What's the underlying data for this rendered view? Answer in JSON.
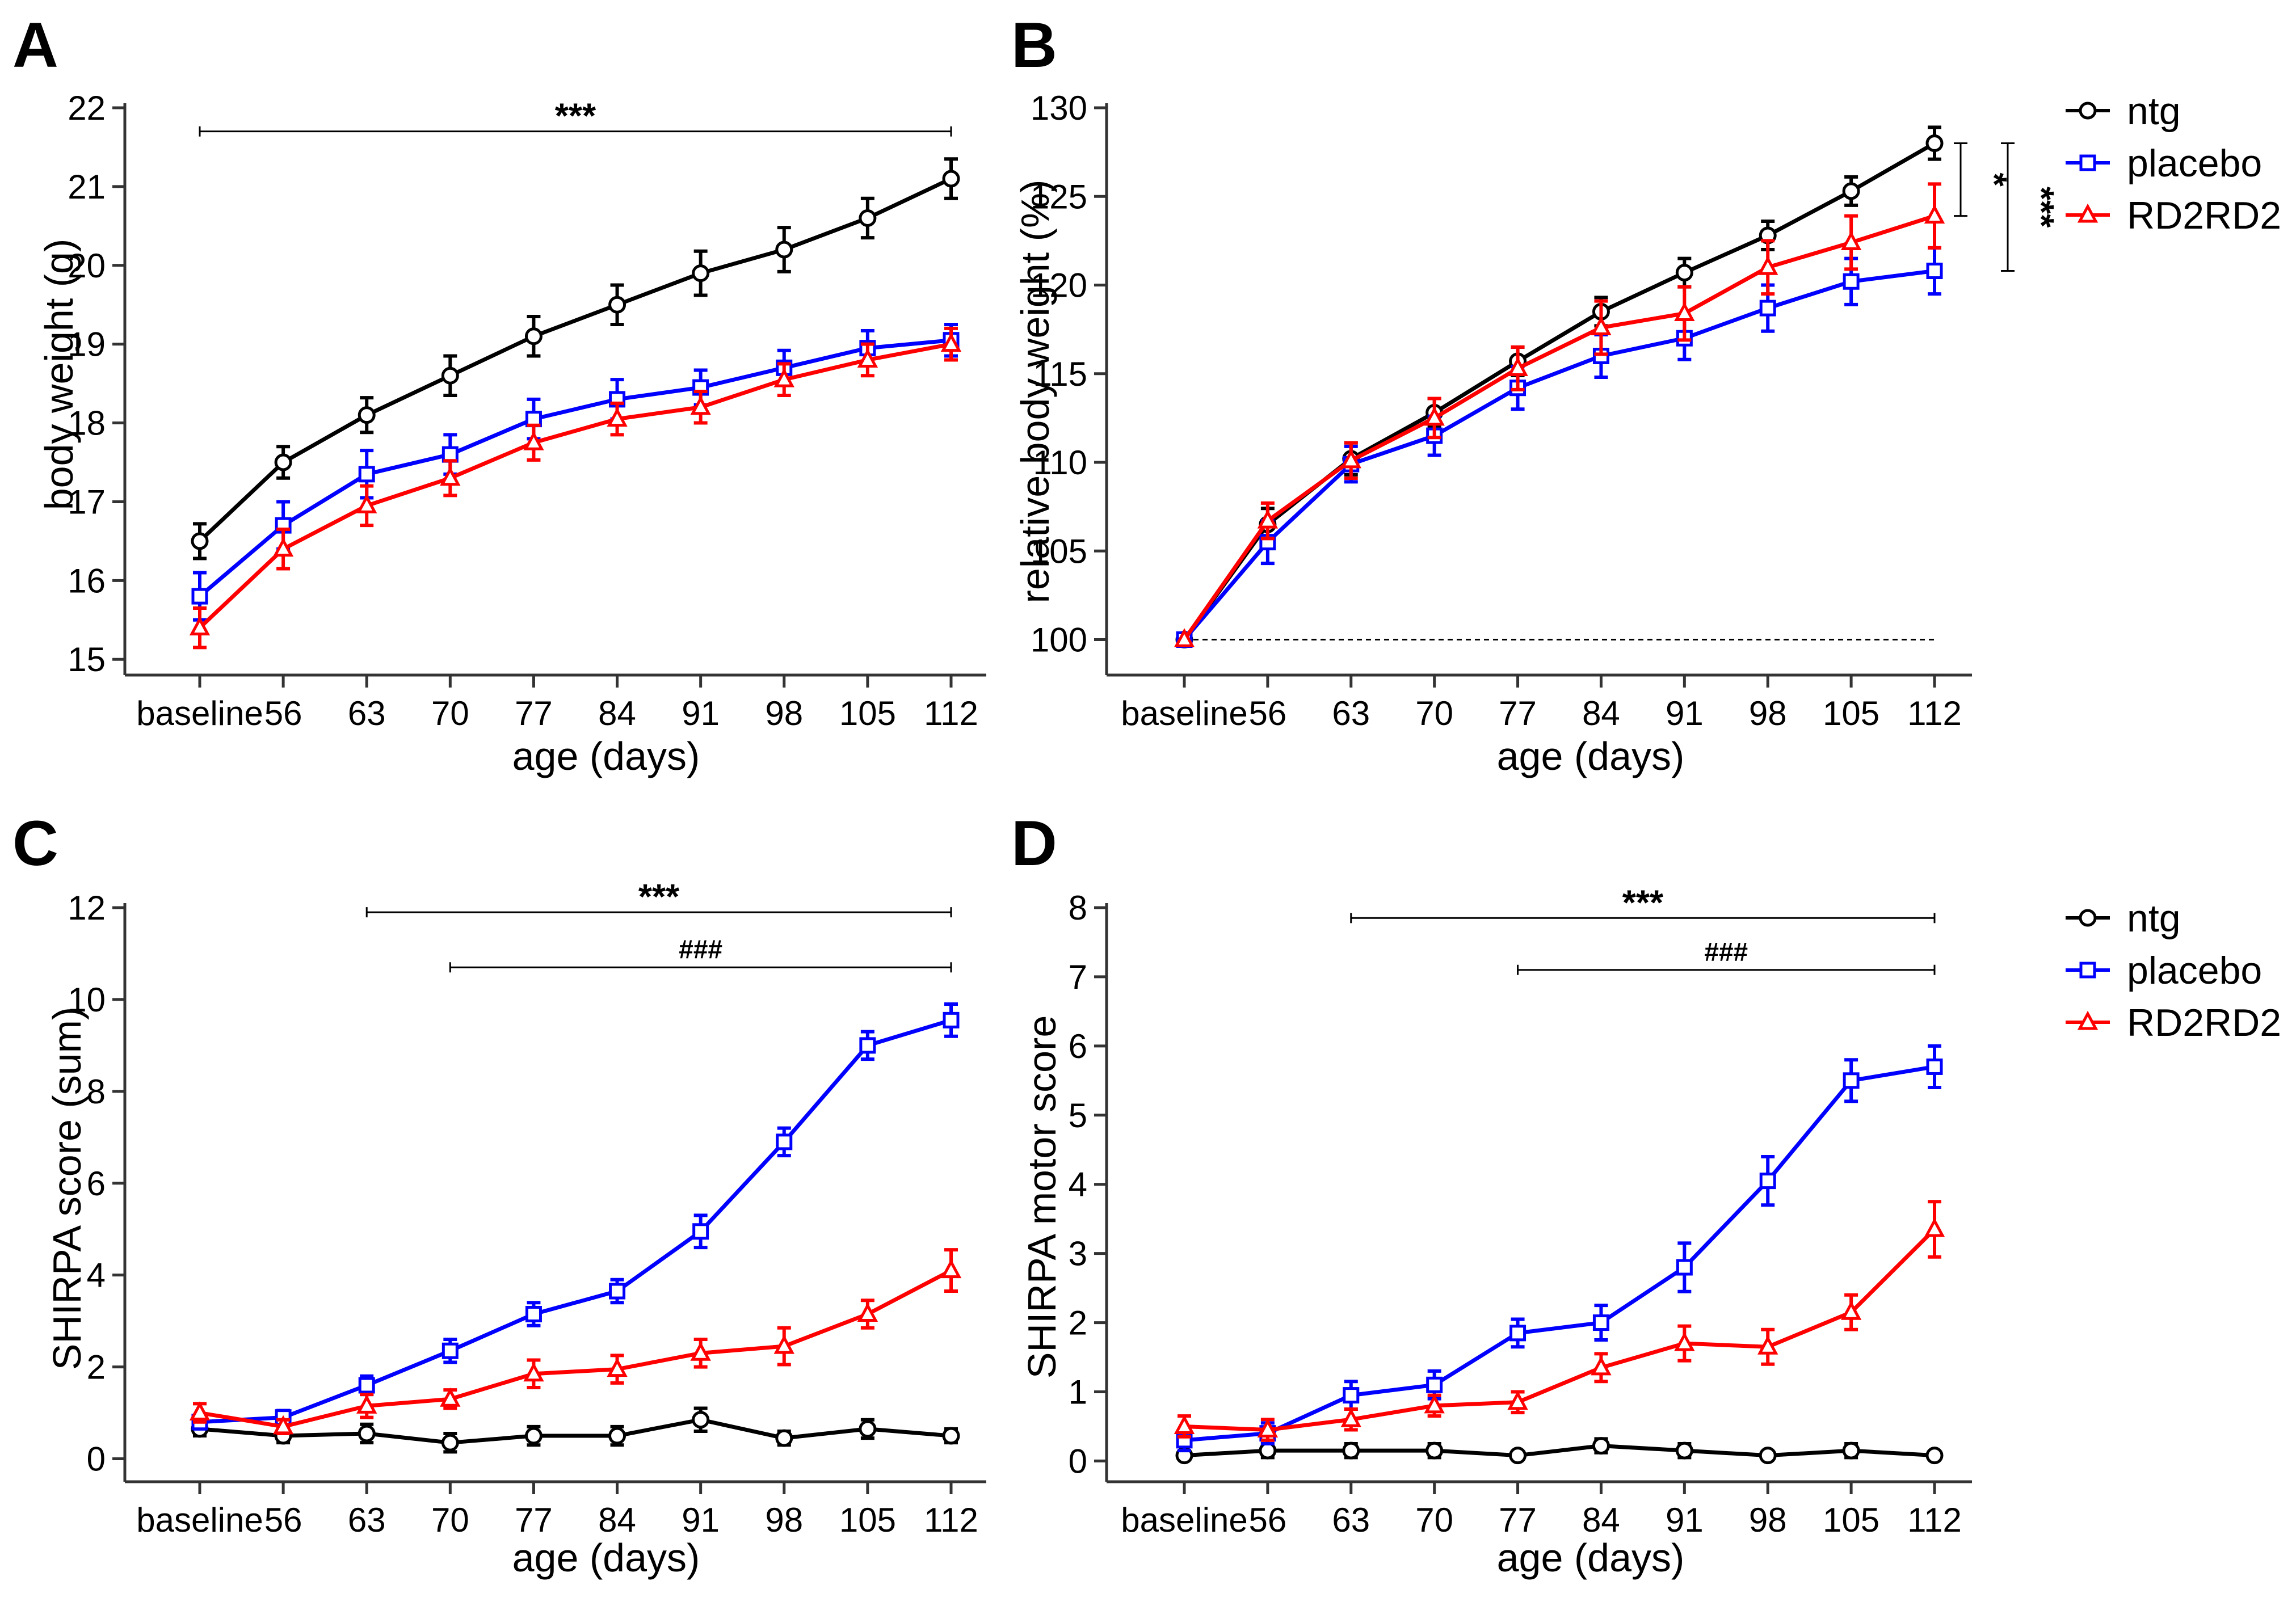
{
  "colors": {
    "ntg": "#000000",
    "placebo": "#0000ff",
    "rd2rd2": "#ff0000"
  },
  "legend": {
    "items": [
      {
        "name": "ntg",
        "label": "ntg",
        "color": "#000000",
        "marker": "circle"
      },
      {
        "name": "placebo",
        "label": "placebo",
        "color": "#0000ff",
        "marker": "square"
      },
      {
        "name": "rd2rd2",
        "label": "RD2RD2",
        "color": "#ff0000",
        "marker": "triangle"
      }
    ]
  },
  "chart_data": [
    {
      "panel": "A",
      "type": "line",
      "xlabel": "age (days)",
      "ylabel": "body weight (g)",
      "categories": [
        "baseline",
        "56",
        "63",
        "70",
        "77",
        "84",
        "91",
        "98",
        "105",
        "112"
      ],
      "ylim": [
        14.8,
        22
      ],
      "yticks": [
        15,
        16,
        17,
        18,
        19,
        20,
        21,
        22
      ],
      "series": [
        {
          "name": "ntg",
          "color": "#000000",
          "marker": "circle",
          "values": [
            16.5,
            17.5,
            18.1,
            18.6,
            19.1,
            19.5,
            19.9,
            20.2,
            20.6,
            21.1
          ],
          "errors": [
            0.22,
            0.2,
            0.22,
            0.25,
            0.25,
            0.25,
            0.28,
            0.28,
            0.25,
            0.25
          ]
        },
        {
          "name": "placebo",
          "color": "#0000ff",
          "marker": "square",
          "values": [
            15.8,
            16.7,
            17.35,
            17.6,
            18.05,
            18.3,
            18.45,
            18.7,
            18.95,
            19.05
          ],
          "errors": [
            0.3,
            0.3,
            0.3,
            0.25,
            0.25,
            0.25,
            0.22,
            0.22,
            0.22,
            0.2
          ]
        },
        {
          "name": "rd2rd2",
          "color": "#ff0000",
          "marker": "triangle",
          "values": [
            15.4,
            16.4,
            16.95,
            17.3,
            17.75,
            18.05,
            18.2,
            18.55,
            18.8,
            19.0
          ],
          "errors": [
            0.25,
            0.25,
            0.25,
            0.22,
            0.22,
            0.2,
            0.2,
            0.2,
            0.2,
            0.2
          ]
        }
      ],
      "significance": [
        {
          "label": "***",
          "from": 0,
          "to": 9,
          "y": 21.7,
          "style": "star"
        }
      ]
    },
    {
      "panel": "B",
      "type": "line",
      "xlabel": "age (days)",
      "ylabel": "relative body weight (%)",
      "categories": [
        "baseline",
        "56",
        "63",
        "70",
        "77",
        "84",
        "91",
        "98",
        "105",
        "112"
      ],
      "ylim": [
        98,
        130
      ],
      "yticks": [
        100,
        105,
        110,
        115,
        120,
        125,
        130
      ],
      "baseline_reference": 100,
      "series": [
        {
          "name": "ntg",
          "color": "#000000",
          "marker": "circle",
          "values": [
            100,
            106.5,
            110.2,
            112.8,
            115.7,
            118.5,
            120.7,
            122.8,
            125.3,
            128.0
          ],
          "errors": [
            0,
            0.9,
            0.9,
            0.8,
            0.8,
            0.8,
            0.8,
            0.8,
            0.8,
            0.9
          ]
        },
        {
          "name": "placebo",
          "color": "#0000ff",
          "marker": "square",
          "values": [
            100,
            105.5,
            109.9,
            111.5,
            114.2,
            116.0,
            117.0,
            118.7,
            120.2,
            120.8
          ],
          "errors": [
            0,
            1.2,
            1.0,
            1.1,
            1.2,
            1.2,
            1.2,
            1.3,
            1.3,
            1.3
          ]
        },
        {
          "name": "rd2rd2",
          "color": "#ff0000",
          "marker": "triangle",
          "values": [
            100,
            106.7,
            110.1,
            112.5,
            115.3,
            117.6,
            118.4,
            121.0,
            122.4,
            123.9
          ],
          "errors": [
            0,
            1.0,
            1.0,
            1.1,
            1.2,
            1.5,
            1.5,
            1.5,
            1.5,
            1.8
          ]
        }
      ],
      "significance": [
        {
          "label": "*",
          "y_from": 128.0,
          "y_to": 123.9,
          "style": "vertical-near"
        },
        {
          "label": "***",
          "y_from": 128.0,
          "y_to": 120.8,
          "style": "vertical-far"
        }
      ]
    },
    {
      "panel": "C",
      "type": "line",
      "xlabel": "age (days)",
      "ylabel": "SHIRPA score (sum)",
      "categories": [
        "baseline",
        "56",
        "63",
        "70",
        "77",
        "84",
        "91",
        "98",
        "105",
        "112"
      ],
      "ylim": [
        -0.5,
        12
      ],
      "yticks": [
        0,
        2,
        4,
        6,
        8,
        10,
        12
      ],
      "series": [
        {
          "name": "ntg",
          "color": "#000000",
          "marker": "circle",
          "values": [
            0.65,
            0.5,
            0.55,
            0.35,
            0.5,
            0.5,
            0.85,
            0.45,
            0.65,
            0.5
          ],
          "errors": [
            0.15,
            0.15,
            0.2,
            0.2,
            0.2,
            0.2,
            0.25,
            0.15,
            0.2,
            0.15
          ]
        },
        {
          "name": "placebo",
          "color": "#0000ff",
          "marker": "square",
          "values": [
            0.8,
            0.9,
            1.6,
            2.35,
            3.15,
            3.65,
            4.95,
            6.9,
            9.0,
            9.55
          ],
          "errors": [
            0.15,
            0.15,
            0.2,
            0.25,
            0.25,
            0.25,
            0.35,
            0.3,
            0.3,
            0.35
          ]
        },
        {
          "name": "rd2rd2",
          "color": "#ff0000",
          "marker": "triangle",
          "values": [
            1.0,
            0.7,
            1.15,
            1.3,
            1.85,
            1.95,
            2.3,
            2.45,
            3.15,
            4.1
          ],
          "errors": [
            0.2,
            0.15,
            0.25,
            0.2,
            0.3,
            0.3,
            0.3,
            0.4,
            0.3,
            0.45
          ]
        }
      ],
      "significance": [
        {
          "label": "***",
          "from": 2,
          "to": 9,
          "y": 11.9,
          "style": "star"
        },
        {
          "label": "###",
          "from": 3,
          "to": 9,
          "y": 10.7,
          "style": "hash"
        }
      ]
    },
    {
      "panel": "D",
      "type": "line",
      "xlabel": "age (days)",
      "ylabel": "SHIRPA motor score",
      "categories": [
        "baseline",
        "56",
        "63",
        "70",
        "77",
        "84",
        "91",
        "98",
        "105",
        "112"
      ],
      "ylim": [
        -0.3,
        8
      ],
      "yticks": [
        0,
        1,
        2,
        3,
        4,
        5,
        6,
        7,
        8
      ],
      "series": [
        {
          "name": "ntg",
          "color": "#000000",
          "marker": "circle",
          "values": [
            0.08,
            0.15,
            0.15,
            0.15,
            0.08,
            0.22,
            0.15,
            0.08,
            0.15,
            0.08
          ],
          "errors": [
            0.05,
            0.1,
            0.1,
            0.1,
            0.05,
            0.1,
            0.1,
            0.05,
            0.1,
            0.05
          ]
        },
        {
          "name": "placebo",
          "color": "#0000ff",
          "marker": "square",
          "values": [
            0.3,
            0.4,
            0.95,
            1.1,
            1.85,
            2.0,
            2.8,
            4.05,
            5.5,
            5.7
          ],
          "errors": [
            0.15,
            0.15,
            0.2,
            0.2,
            0.2,
            0.25,
            0.35,
            0.35,
            0.3,
            0.3
          ]
        },
        {
          "name": "rd2rd2",
          "color": "#ff0000",
          "marker": "triangle",
          "values": [
            0.5,
            0.45,
            0.6,
            0.8,
            0.85,
            1.35,
            1.7,
            1.65,
            2.15,
            3.35
          ],
          "errors": [
            0.15,
            0.15,
            0.15,
            0.15,
            0.15,
            0.2,
            0.25,
            0.25,
            0.25,
            0.4
          ]
        }
      ],
      "significance": [
        {
          "label": "***",
          "from": 2,
          "to": 9,
          "y": 7.85,
          "style": "star"
        },
        {
          "label": "###",
          "from": 4,
          "to": 9,
          "y": 7.1,
          "style": "hash"
        }
      ]
    }
  ]
}
